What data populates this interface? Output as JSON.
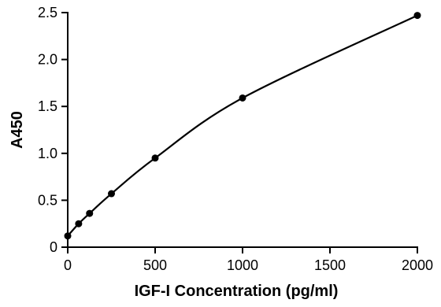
{
  "chart_data": {
    "type": "scatter",
    "xlabel": "IGF-I Concentration (pg/ml)",
    "ylabel": "A450",
    "xlim": [
      0,
      2000
    ],
    "ylim": [
      0,
      2.5
    ],
    "x_ticks": [
      "0",
      "500",
      "1000",
      "1500",
      "2000"
    ],
    "y_ticks": [
      "0",
      "0.5",
      "1.0",
      "1.5",
      "2.0",
      "2.5"
    ],
    "grid": false,
    "series": [
      {
        "x": [
          0,
          62.5,
          125,
          250,
          500,
          1000,
          2000
        ],
        "y": [
          0.12,
          0.25,
          0.36,
          0.57,
          0.95,
          1.59,
          2.47
        ],
        "fit": "smooth curve"
      }
    ]
  }
}
